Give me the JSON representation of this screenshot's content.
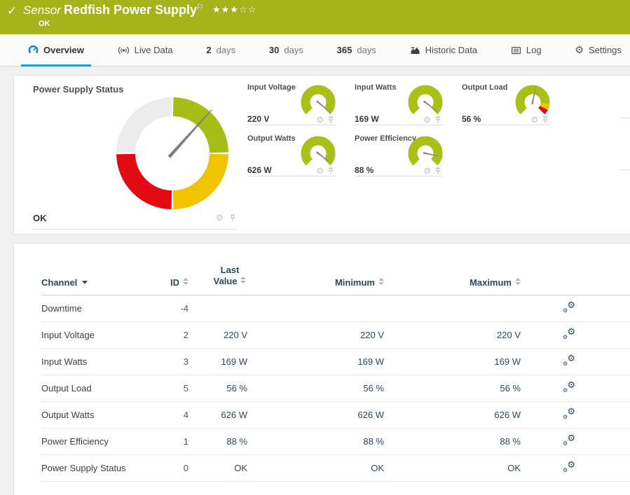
{
  "header": {
    "type_label": "Sensor",
    "title": "Redfish Power Supply",
    "status": "OK",
    "stars": "★★★☆☆",
    "bg_color": "#a4b41a"
  },
  "tabs": [
    {
      "label": "Overview",
      "active": true
    },
    {
      "label": "Live Data"
    },
    {
      "num": "2",
      "label": "days"
    },
    {
      "num": "30",
      "label": "days"
    },
    {
      "num": "365",
      "label": "days"
    },
    {
      "label": "Historic Data"
    },
    {
      "label": "Log"
    },
    {
      "label": "Settings"
    }
  ],
  "gauges": {
    "main": {
      "title": "Power Supply Status",
      "value": "OK",
      "needle_deg": 42,
      "segment_colors": {
        "ok": "#a6bd16",
        "warning": "#f0c200",
        "error": "#e30b13",
        "unused": "#ececec"
      }
    },
    "small": [
      {
        "label": "Input Voltage",
        "value": "220 V",
        "needle_deg": 130
      },
      {
        "label": "Input Watts",
        "value": "169 W",
        "needle_deg": 128
      },
      {
        "label": "Output Load",
        "value": "56 %",
        "needle_deg": 12
      },
      {
        "label": "Output Watts",
        "value": "626 W",
        "needle_deg": 127
      },
      {
        "label": "Power Efficiency",
        "value": "88 %",
        "needle_deg": 101
      }
    ]
  },
  "table": {
    "columns": {
      "channel": "Channel",
      "id": "ID",
      "last": "Last Value",
      "min": "Minimum",
      "max": "Maximum"
    },
    "rows": [
      {
        "channel": "Downtime",
        "id": "-4",
        "last": "",
        "min": "",
        "max": ""
      },
      {
        "channel": "Input Voltage",
        "id": "2",
        "last": "220 V",
        "min": "220 V",
        "max": "220 V"
      },
      {
        "channel": "Input Watts",
        "id": "3",
        "last": "169 W",
        "min": "169 W",
        "max": "169 W"
      },
      {
        "channel": "Output Load",
        "id": "5",
        "last": "56 %",
        "min": "56 %",
        "max": "56 %"
      },
      {
        "channel": "Output Watts",
        "id": "4",
        "last": "626 W",
        "min": "626 W",
        "max": "626 W"
      },
      {
        "channel": "Power Efficiency",
        "id": "1",
        "last": "88 %",
        "min": "88 %",
        "max": "88 %"
      },
      {
        "channel": "Power Supply Status",
        "id": "0",
        "last": "OK",
        "min": "OK",
        "max": "OK"
      }
    ]
  },
  "icons": {
    "check": "✓",
    "flag": "⚐",
    "gear": "⚙"
  },
  "colors": {
    "accent_blue": "#1e9cd8",
    "navy_text": "#2d4660",
    "page_bg": "#f0f0f0"
  }
}
